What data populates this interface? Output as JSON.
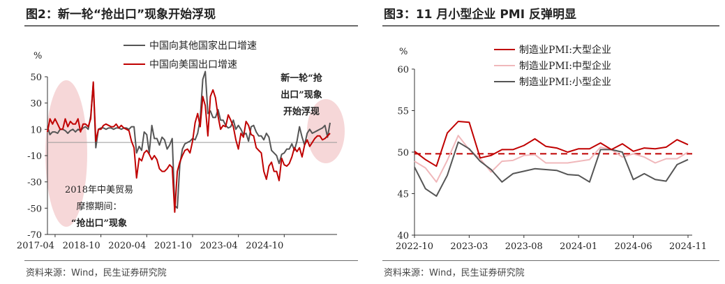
{
  "left_panel": {
    "title": "图2：新一轮“抢出口”现象开始浮现",
    "source": "资料来源：Wind，民生证券研究院",
    "annotation_2018": [
      "2018年中美贸易",
      "摩擦期间：",
      "“抢出口”现象"
    ],
    "annotation_new": [
      "新一轮“抢",
      "出口”现象",
      "开始浮现"
    ],
    "colors": {
      "other": "#555555",
      "us": "#c00000",
      "highlight": "#f3c9cb"
    }
  },
  "right_panel": {
    "title": "图3：11 月小型企业 PMI 反弹明显",
    "source": "资料来源：Wind，民生证券研究院",
    "colors": {
      "large": "#c00000",
      "medium": "#f0b8bb",
      "small": "#555555",
      "ref": "#c00000"
    }
  },
  "chart_data": [
    {
      "type": "line",
      "ylabel": "%",
      "ylim": [
        -70,
        50
      ],
      "yticks": [
        50,
        30,
        10,
        -10,
        -30,
        -50,
        -70
      ],
      "xticks": [
        "2017-04",
        "2018-10",
        "2020-04",
        "2021-10",
        "2023-04",
        "2024-10"
      ],
      "x_start": "2017-01",
      "series": [
        {
          "name": "中国向其他国家出口增速",
          "values": [
            12,
            6,
            8,
            8,
            7,
            10,
            10,
            9,
            7,
            9,
            10,
            8,
            10,
            9,
            11,
            12,
            10,
            20,
            45,
            -4,
            10,
            11,
            11,
            10,
            11,
            11,
            10,
            11,
            11,
            10,
            11,
            11,
            10,
            12,
            12,
            -8,
            -3,
            -6,
            8,
            6,
            -8,
            13,
            3,
            3,
            -2,
            4,
            2,
            -5,
            -2,
            3,
            -48,
            -50,
            -17,
            -5,
            -1,
            0,
            1,
            3,
            2,
            7,
            18,
            48,
            54,
            22,
            24,
            19,
            19,
            25,
            17,
            17,
            13,
            11,
            12,
            17,
            10,
            13,
            10,
            6,
            7,
            1,
            12,
            13,
            8,
            5,
            5,
            2,
            7,
            4,
            -6,
            -8,
            -10,
            -16,
            -9,
            -8,
            -5,
            -5,
            -1,
            -6,
            1,
            12,
            4,
            -2,
            7,
            10,
            7,
            8,
            9,
            10,
            11,
            13,
            4,
            15
          ]
        },
        {
          "name": "中国向美国出口增速",
          "values": [
            8,
            18,
            14,
            18,
            14,
            10,
            10,
            18,
            12,
            16,
            14,
            14,
            18,
            8,
            14,
            14,
            12,
            18,
            46,
            1,
            10,
            10,
            13,
            14,
            13,
            12,
            12,
            14,
            11,
            13,
            11,
            10,
            9,
            1,
            -4,
            -27,
            -12,
            -14,
            -8,
            -6,
            -9,
            -13,
            -10,
            -13,
            -20,
            -22,
            -22,
            -20,
            -17,
            -19,
            -53,
            -22,
            -15,
            -10,
            -6,
            -5,
            -8,
            1,
            15,
            22,
            12,
            35,
            28,
            5,
            35,
            40,
            34,
            20,
            10,
            13,
            12,
            21,
            17,
            12,
            2,
            -5,
            7,
            4,
            16,
            13,
            6,
            5,
            -4,
            -6,
            -8,
            -22,
            -28,
            -18,
            -15,
            -22,
            -22,
            -29,
            -12,
            -17,
            -18,
            -16,
            -11,
            -4,
            -7,
            -4,
            -11,
            -2,
            2,
            -3,
            0,
            3,
            5,
            5,
            2,
            3,
            5,
            7
          ]
        }
      ]
    },
    {
      "type": "line",
      "ylabel": "%",
      "ylim": [
        40,
        60
      ],
      "yticks": [
        60,
        55,
        50,
        45,
        40
      ],
      "xticks": [
        "2022-10",
        "2023-03",
        "2023-08",
        "2024-01",
        "2024-06",
        "2024-11"
      ],
      "x": [
        "2022-10",
        "2022-11",
        "2022-12",
        "2023-01",
        "2023-02",
        "2023-03",
        "2023-04",
        "2023-05",
        "2023-06",
        "2023-07",
        "2023-08",
        "2023-09",
        "2023-10",
        "2023-11",
        "2023-12",
        "2024-01",
        "2024-02",
        "2024-03",
        "2024-04",
        "2024-05",
        "2024-06",
        "2024-07",
        "2024-08",
        "2024-09",
        "2024-10",
        "2024-11"
      ],
      "reference_line": 49.8,
      "series": [
        {
          "name": "制造业PMI:大型企业",
          "values": [
            50.1,
            49.1,
            48.3,
            52.3,
            53.7,
            53.6,
            49.3,
            49.6,
            50.3,
            50.3,
            50.8,
            51.6,
            50.7,
            50.5,
            50.0,
            50.4,
            50.4,
            51.1,
            50.3,
            51.0,
            50.1,
            50.5,
            50.4,
            50.6,
            51.5,
            50.9
          ]
        },
        {
          "name": "制造业PMI:中型企业",
          "values": [
            48.9,
            48.1,
            46.4,
            49.0,
            52.0,
            50.3,
            49.2,
            47.6,
            48.9,
            49.0,
            49.6,
            49.7,
            48.7,
            48.7,
            48.7,
            48.9,
            49.1,
            50.6,
            50.3,
            49.4,
            49.8,
            49.4,
            48.7,
            49.2,
            49.2,
            50.0
          ]
        },
        {
          "name": "制造业PMI:小型企业",
          "values": [
            48.2,
            45.6,
            44.7,
            47.2,
            51.2,
            50.4,
            48.9,
            47.9,
            46.4,
            47.4,
            47.7,
            48.0,
            47.9,
            47.8,
            47.3,
            47.2,
            46.4,
            50.3,
            50.3,
            50.0,
            46.7,
            47.4,
            46.7,
            46.5,
            48.5,
            49.1
          ]
        }
      ]
    }
  ]
}
